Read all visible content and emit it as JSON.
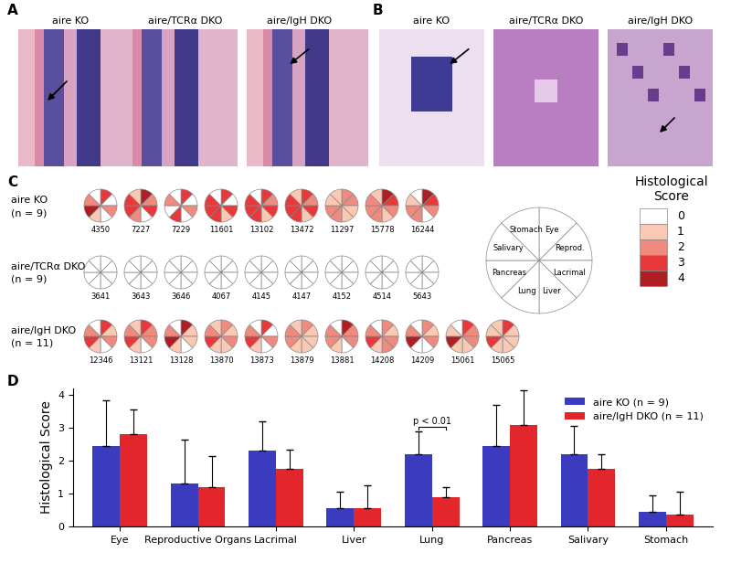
{
  "panels": {
    "A": {
      "label": "A",
      "images": [
        "aire KO",
        "aire/TCRα DKO",
        "aire/IgH DKO"
      ]
    },
    "B": {
      "label": "B",
      "images": [
        "aire KO",
        "aire/TCRα DKO",
        "aire/IgH DKO"
      ]
    }
  },
  "panel_C": {
    "label": "C",
    "organs": [
      "Eye",
      "Reprod.",
      "Lacrimal",
      "Liver",
      "Lung",
      "Pancreas",
      "Salivary",
      "Stomach"
    ],
    "score_title": "Histological Score",
    "scores": [
      0,
      1,
      2,
      3,
      4
    ],
    "score_colors": [
      "#ffffff",
      "#f9c9b4",
      "#f08a7e",
      "#e8383a",
      "#b01e24"
    ],
    "groups": [
      {
        "name": "aire KO",
        "n_label": "(n = 9)",
        "mice": [
          {
            "id": "4350",
            "scores": [
              3,
              0,
              2,
              0,
              1,
              4,
              2,
              0
            ]
          },
          {
            "id": "7227",
            "scores": [
              4,
              2,
              3,
              0,
              2,
              3,
              3,
              1
            ]
          },
          {
            "id": "7229",
            "scores": [
              3,
              0,
              2,
              0,
              3,
              0,
              2,
              0
            ]
          },
          {
            "id": "11601",
            "scores": [
              3,
              0,
              3,
              1,
              3,
              3,
              3,
              0
            ]
          },
          {
            "id": "13102",
            "scores": [
              3,
              2,
              3,
              1,
              3,
              3,
              3,
              0
            ]
          },
          {
            "id": "13472",
            "scores": [
              3,
              2,
              3,
              1,
              3,
              3,
              3,
              1
            ]
          },
          {
            "id": "11297",
            "scores": [
              2,
              2,
              1,
              1,
              2,
              2,
              1,
              1
            ]
          },
          {
            "id": "15778",
            "scores": [
              4,
              3,
              2,
              1,
              2,
              2,
              2,
              1
            ]
          },
          {
            "id": "16244",
            "scores": [
              4,
              3,
              2,
              0,
              2,
              2,
              1,
              0
            ]
          }
        ]
      },
      {
        "name": "aire/TCRα DKO",
        "n_label": "(n = 9)",
        "mice": [
          {
            "id": "3641",
            "scores": [
              0,
              0,
              0,
              0,
              0,
              0,
              0,
              0
            ]
          },
          {
            "id": "3643",
            "scores": [
              0,
              0,
              0,
              0,
              0,
              0,
              0,
              0
            ]
          },
          {
            "id": "3646",
            "scores": [
              0,
              0,
              0,
              0,
              0,
              0,
              0,
              0
            ]
          },
          {
            "id": "4067",
            "scores": [
              0,
              0,
              0,
              0,
              0,
              0,
              0,
              0
            ]
          },
          {
            "id": "4145",
            "scores": [
              0,
              0,
              0,
              0,
              0,
              0,
              0,
              0
            ]
          },
          {
            "id": "4147",
            "scores": [
              0,
              0,
              0,
              0,
              0,
              0,
              0,
              0
            ]
          },
          {
            "id": "4152",
            "scores": [
              0,
              0,
              0,
              0,
              0,
              0,
              0,
              0
            ]
          },
          {
            "id": "4514",
            "scores": [
              0,
              0,
              0,
              0,
              0,
              0,
              0,
              0
            ]
          },
          {
            "id": "5643",
            "scores": [
              0,
              0,
              0,
              0,
              0,
              0,
              0,
              0
            ]
          }
        ]
      },
      {
        "name": "aire/IgH DKO",
        "n_label": "(n = 11)",
        "mice": [
          {
            "id": "12346",
            "scores": [
              3,
              1,
              2,
              0,
              1,
              3,
              2,
              0
            ]
          },
          {
            "id": "13121",
            "scores": [
              3,
              2,
              2,
              0,
              1,
              3,
              2,
              1
            ]
          },
          {
            "id": "13128",
            "scores": [
              4,
              1,
              1,
              0,
              1,
              4,
              2,
              0
            ]
          },
          {
            "id": "13870",
            "scores": [
              2,
              1,
              2,
              1,
              1,
              3,
              2,
              1
            ]
          },
          {
            "id": "13873",
            "scores": [
              3,
              0,
              2,
              0,
              1,
              3,
              2,
              0
            ]
          },
          {
            "id": "13879",
            "scores": [
              2,
              1,
              1,
              1,
              1,
              2,
              2,
              1
            ]
          },
          {
            "id": "13881",
            "scores": [
              4,
              2,
              2,
              0,
              1,
              2,
              2,
              0
            ]
          },
          {
            "id": "14208",
            "scores": [
              2,
              1,
              2,
              2,
              1,
              3,
              2,
              0
            ]
          },
          {
            "id": "14209",
            "scores": [
              2,
              1,
              2,
              0,
              0,
              4,
              2,
              0
            ]
          },
          {
            "id": "15061",
            "scores": [
              3,
              2,
              2,
              1,
              1,
              4,
              1,
              0
            ]
          },
          {
            "id": "15065",
            "scores": [
              3,
              1,
              1,
              1,
              1,
              3,
              1,
              1
            ]
          }
        ]
      }
    ]
  },
  "chart_data": {
    "type": "bar",
    "label": "D",
    "categories": [
      "Eye",
      "Reproductive Organs",
      "Lacrimal",
      "Liver",
      "Lung",
      "Pancreas",
      "Salivary",
      "Stomach"
    ],
    "series": [
      {
        "name": "aire KO (n = 9)",
        "color": "#3b3bbf",
        "values": [
          2.45,
          1.3,
          2.3,
          0.55,
          2.2,
          2.45,
          2.2,
          0.45
        ],
        "errors": [
          1.4,
          1.35,
          0.9,
          0.5,
          0.7,
          1.25,
          0.85,
          0.5
        ]
      },
      {
        "name": "aire/IgH DKO (n = 11)",
        "color": "#e3262b",
        "values": [
          2.8,
          1.2,
          1.75,
          0.55,
          0.9,
          3.1,
          1.75,
          0.35
        ],
        "errors": [
          0.75,
          0.95,
          0.6,
          0.7,
          0.3,
          1.05,
          0.45,
          0.7
        ]
      }
    ],
    "y_label": "Histological Score",
    "ylim": [
      0,
      4.2
    ],
    "yticks": [
      0,
      1,
      2,
      3,
      4
    ],
    "legend": "upper right",
    "annotations": [
      {
        "text": "p < 0.01",
        "category": "Lung"
      }
    ]
  }
}
